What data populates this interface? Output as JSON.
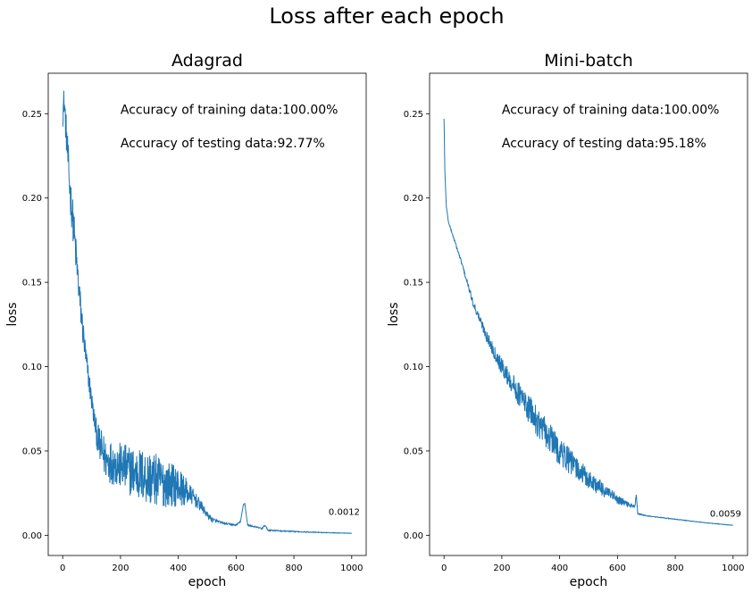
{
  "figure": {
    "title": "Loss after each epoch"
  },
  "chart_data": [
    {
      "type": "line",
      "title": "Adagrad",
      "xlabel": "epoch",
      "ylabel": "loss",
      "xlim": [
        -50,
        1050
      ],
      "ylim": [
        -0.012,
        0.274
      ],
      "xticks": [
        0,
        200,
        400,
        600,
        800,
        1000
      ],
      "yticks": [
        0.0,
        0.05,
        0.1,
        0.15,
        0.2,
        0.25
      ],
      "grid": false,
      "color": "#1f77b4",
      "annotations": [
        {
          "text": "Accuracy of training data:100.00%",
          "x": 200,
          "y": 0.25
        },
        {
          "text": "Accuracy of testing data:92.77%",
          "x": 200,
          "y": 0.23
        }
      ],
      "final_label": {
        "text": "0.0012",
        "x": 920,
        "y": 0.012
      },
      "anchors": [
        [
          0,
          0.25
        ],
        [
          5,
          0.258
        ],
        [
          10,
          0.245
        ],
        [
          15,
          0.232
        ],
        [
          20,
          0.218
        ],
        [
          25,
          0.205
        ],
        [
          30,
          0.196
        ],
        [
          35,
          0.188
        ],
        [
          40,
          0.178
        ],
        [
          45,
          0.168
        ],
        [
          50,
          0.158
        ],
        [
          55,
          0.148
        ],
        [
          60,
          0.138
        ],
        [
          70,
          0.121
        ],
        [
          80,
          0.105
        ],
        [
          90,
          0.093
        ],
        [
          100,
          0.08
        ],
        [
          110,
          0.068
        ],
        [
          120,
          0.058
        ],
        [
          130,
          0.052
        ],
        [
          150,
          0.045
        ],
        [
          200,
          0.041
        ],
        [
          250,
          0.037
        ],
        [
          300,
          0.034
        ],
        [
          350,
          0.031
        ],
        [
          400,
          0.029
        ],
        [
          450,
          0.023
        ],
        [
          480,
          0.017
        ],
        [
          500,
          0.012
        ],
        [
          520,
          0.009
        ],
        [
          560,
          0.007
        ],
        [
          600,
          0.006
        ],
        [
          615,
          0.008
        ],
        [
          625,
          0.018
        ],
        [
          630,
          0.019
        ],
        [
          640,
          0.006
        ],
        [
          690,
          0.004
        ],
        [
          700,
          0.006
        ],
        [
          710,
          0.003
        ],
        [
          800,
          0.0022
        ],
        [
          900,
          0.0016
        ],
        [
          1000,
          0.0012
        ]
      ],
      "noise": [
        [
          0,
          0.008
        ],
        [
          20,
          0.012
        ],
        [
          40,
          0.012
        ],
        [
          60,
          0.01
        ],
        [
          80,
          0.008
        ],
        [
          110,
          0.006
        ],
        [
          130,
          0.012
        ],
        [
          200,
          0.014
        ],
        [
          300,
          0.017
        ],
        [
          400,
          0.012
        ],
        [
          450,
          0.005
        ],
        [
          500,
          0.002
        ],
        [
          550,
          0.0005
        ],
        [
          1000,
          0.0001
        ]
      ]
    },
    {
      "type": "line",
      "title": "Mini-batch",
      "xlabel": "epoch",
      "ylabel": "loss",
      "xlim": [
        -50,
        1050
      ],
      "ylim": [
        -0.012,
        0.274
      ],
      "xticks": [
        0,
        200,
        400,
        600,
        800,
        1000
      ],
      "yticks": [
        0.0,
        0.05,
        0.1,
        0.15,
        0.2,
        0.25
      ],
      "grid": false,
      "color": "#1f77b4",
      "annotations": [
        {
          "text": "Accuracy of training data:100.00%",
          "x": 200,
          "y": 0.25
        },
        {
          "text": "Accuracy of testing data:95.18%",
          "x": 200,
          "y": 0.23
        }
      ],
      "final_label": {
        "text": "0.0059",
        "x": 920,
        "y": 0.011
      },
      "anchors": [
        [
          0,
          0.247
        ],
        [
          3,
          0.215
        ],
        [
          8,
          0.195
        ],
        [
          15,
          0.186
        ],
        [
          30,
          0.178
        ],
        [
          60,
          0.162
        ],
        [
          100,
          0.138
        ],
        [
          150,
          0.117
        ],
        [
          200,
          0.1
        ],
        [
          250,
          0.086
        ],
        [
          300,
          0.073
        ],
        [
          350,
          0.061
        ],
        [
          400,
          0.05
        ],
        [
          450,
          0.041
        ],
        [
          500,
          0.033
        ],
        [
          550,
          0.027
        ],
        [
          600,
          0.021
        ],
        [
          640,
          0.018
        ],
        [
          660,
          0.017
        ],
        [
          665,
          0.024
        ],
        [
          670,
          0.013
        ],
        [
          700,
          0.0115
        ],
        [
          800,
          0.0095
        ],
        [
          900,
          0.0075
        ],
        [
          1000,
          0.0059
        ]
      ],
      "noise": [
        [
          0,
          0.0
        ],
        [
          20,
          0.0005
        ],
        [
          100,
          0.002
        ],
        [
          200,
          0.005
        ],
        [
          300,
          0.009
        ],
        [
          400,
          0.009
        ],
        [
          500,
          0.006
        ],
        [
          600,
          0.003
        ],
        [
          670,
          0.0005
        ],
        [
          700,
          0.0002
        ],
        [
          1000,
          0.0001
        ]
      ]
    }
  ]
}
